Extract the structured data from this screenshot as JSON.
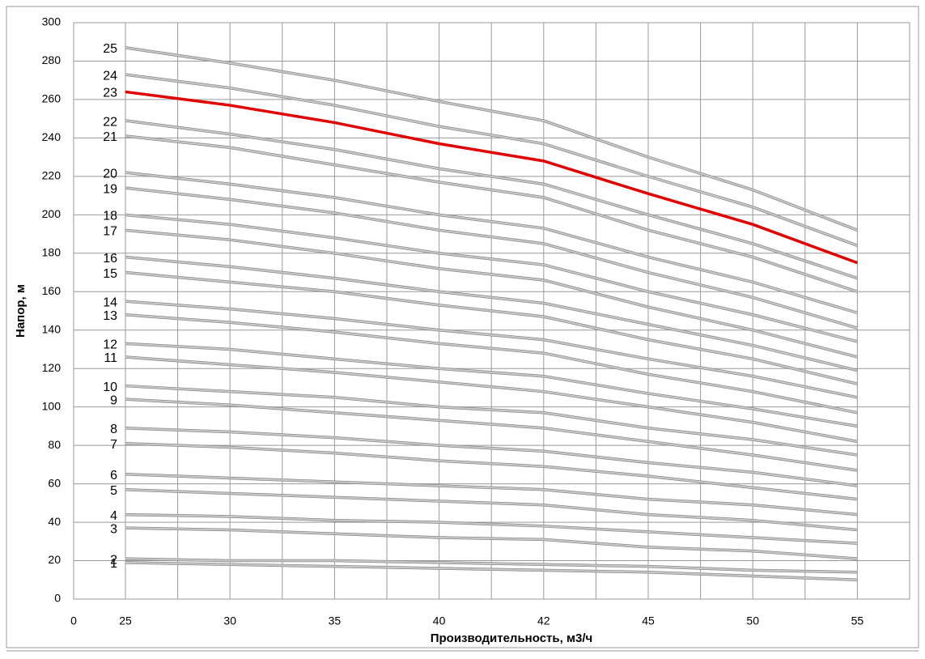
{
  "chart_data": {
    "type": "line",
    "x_label": "Производительность, м3/ч",
    "y_label": "Напор, м",
    "categories": [
      0,
      25,
      30,
      35,
      40,
      42,
      45,
      50,
      55
    ],
    "ylim": [
      0,
      300
    ],
    "yticks": [
      0,
      20,
      40,
      60,
      80,
      100,
      120,
      140,
      160,
      180,
      200,
      220,
      240,
      260,
      280,
      300
    ],
    "grid": true,
    "series": [
      {
        "name": "1",
        "color": "#c8c8c8",
        "values": [
          null,
          19,
          18,
          17,
          16,
          15,
          14,
          12,
          10
        ]
      },
      {
        "name": "2",
        "color": "#c8c8c8",
        "values": [
          null,
          21,
          20,
          20,
          19,
          18,
          17,
          15,
          14
        ]
      },
      {
        "name": "3",
        "color": "#c8c8c8",
        "values": [
          null,
          37,
          36,
          34,
          32,
          31,
          27,
          25,
          21
        ]
      },
      {
        "name": "4",
        "color": "#c8c8c8",
        "values": [
          null,
          44,
          43,
          41,
          40,
          38,
          35,
          32,
          29
        ]
      },
      {
        "name": "5",
        "color": "#c8c8c8",
        "values": [
          null,
          57,
          55,
          53,
          51,
          49,
          44,
          41,
          36
        ]
      },
      {
        "name": "6",
        "color": "#c8c8c8",
        "values": [
          null,
          65,
          63,
          61,
          59,
          57,
          52,
          49,
          44
        ]
      },
      {
        "name": "7",
        "color": "#c8c8c8",
        "values": [
          null,
          81,
          79,
          76,
          72,
          69,
          64,
          58,
          52
        ]
      },
      {
        "name": "8",
        "color": "#c8c8c8",
        "values": [
          null,
          89,
          87,
          84,
          80,
          77,
          71,
          66,
          59
        ]
      },
      {
        "name": "9",
        "color": "#c8c8c8",
        "values": [
          null,
          104,
          101,
          97,
          93,
          89,
          82,
          75,
          67
        ]
      },
      {
        "name": "10",
        "color": "#c8c8c8",
        "values": [
          null,
          111,
          108,
          105,
          100,
          97,
          89,
          83,
          75
        ]
      },
      {
        "name": "11",
        "color": "#c8c8c8",
        "values": [
          null,
          126,
          122,
          118,
          113,
          108,
          100,
          92,
          82
        ]
      },
      {
        "name": "12",
        "color": "#c8c8c8",
        "values": [
          null,
          133,
          130,
          125,
          120,
          116,
          107,
          99,
          90
        ]
      },
      {
        "name": "13",
        "color": "#c8c8c8",
        "values": [
          null,
          148,
          144,
          139,
          133,
          128,
          117,
          108,
          97
        ]
      },
      {
        "name": "14",
        "color": "#c8c8c8",
        "values": [
          null,
          155,
          151,
          146,
          140,
          135,
          125,
          116,
          105
        ]
      },
      {
        "name": "15",
        "color": "#c8c8c8",
        "values": [
          null,
          170,
          165,
          160,
          153,
          147,
          135,
          125,
          112
        ]
      },
      {
        "name": "16",
        "color": "#c8c8c8",
        "values": [
          null,
          178,
          173,
          167,
          160,
          154,
          143,
          132,
          119
        ]
      },
      {
        "name": "17",
        "color": "#c8c8c8",
        "values": [
          null,
          192,
          187,
          180,
          172,
          166,
          152,
          140,
          126
        ]
      },
      {
        "name": "18",
        "color": "#c8c8c8",
        "values": [
          null,
          200,
          195,
          188,
          180,
          174,
          160,
          148,
          134
        ]
      },
      {
        "name": "19",
        "color": "#c8c8c8",
        "values": [
          null,
          214,
          208,
          201,
          192,
          185,
          170,
          157,
          141
        ]
      },
      {
        "name": "20",
        "color": "#c8c8c8",
        "values": [
          null,
          222,
          216,
          209,
          200,
          193,
          178,
          165,
          149
        ]
      },
      {
        "name": "21",
        "color": "#c8c8c8",
        "values": [
          null,
          241,
          235,
          226,
          217,
          209,
          192,
          178,
          160
        ]
      },
      {
        "name": "22",
        "color": "#c8c8c8",
        "values": [
          null,
          249,
          242,
          234,
          224,
          216,
          200,
          185,
          167
        ]
      },
      {
        "name": "23",
        "color": "#e00000",
        "values": [
          null,
          264,
          257,
          248,
          237,
          228,
          211,
          195,
          175
        ]
      },
      {
        "name": "24",
        "color": "#c8c8c8",
        "values": [
          null,
          273,
          266,
          257,
          246,
          237,
          220,
          204,
          184
        ]
      },
      {
        "name": "25",
        "color": "#c8c8c8",
        "values": [
          null,
          287,
          279,
          270,
          259,
          249,
          230,
          213,
          192
        ]
      }
    ]
  }
}
